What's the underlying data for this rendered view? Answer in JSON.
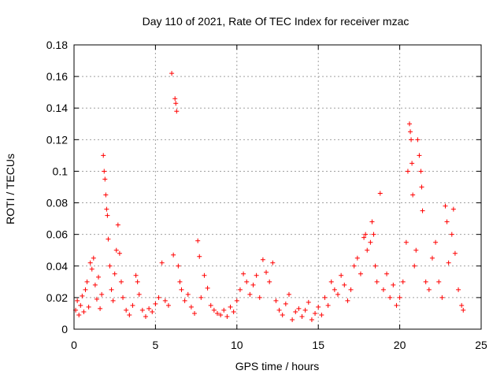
{
  "chart_data": {
    "type": "scatter",
    "title": "Day 110 of 2021, Rate Of TEC Index for receiver mzac",
    "xlabel": "GPS time / hours",
    "ylabel": "ROTI / TECUs",
    "xlim": [
      0,
      25
    ],
    "ylim": [
      0,
      0.18
    ],
    "xticks": [
      0,
      5,
      10,
      15,
      20,
      25
    ],
    "yticks": [
      0,
      0.02,
      0.04,
      0.06,
      0.08,
      0.1,
      0.12,
      0.14,
      0.16,
      0.18
    ],
    "xtick_labels": [
      "0",
      "5",
      "10",
      "15",
      "20",
      "25"
    ],
    "ytick_labels": [
      "0",
      "0.02",
      "0.04",
      "0.06",
      "0.08",
      "0.1",
      "0.12",
      "0.14",
      "0.16",
      "0.18"
    ],
    "grid": true,
    "marker": "+",
    "color": "#ff0000",
    "series": [
      {
        "name": "ROTI",
        "points": [
          [
            0.1,
            0.012
          ],
          [
            0.2,
            0.018
          ],
          [
            0.3,
            0.009
          ],
          [
            0.4,
            0.015
          ],
          [
            0.5,
            0.021
          ],
          [
            0.6,
            0.011
          ],
          [
            0.7,
            0.025
          ],
          [
            0.8,
            0.03
          ],
          [
            0.9,
            0.014
          ],
          [
            1.0,
            0.042
          ],
          [
            1.1,
            0.038
          ],
          [
            1.2,
            0.045
          ],
          [
            1.3,
            0.028
          ],
          [
            1.4,
            0.019
          ],
          [
            1.5,
            0.033
          ],
          [
            1.6,
            0.013
          ],
          [
            1.7,
            0.022
          ],
          [
            1.8,
            0.11
          ],
          [
            1.85,
            0.1
          ],
          [
            1.9,
            0.095
          ],
          [
            1.95,
            0.085
          ],
          [
            2.0,
            0.076
          ],
          [
            2.05,
            0.072
          ],
          [
            2.1,
            0.057
          ],
          [
            2.2,
            0.04
          ],
          [
            2.3,
            0.025
          ],
          [
            2.4,
            0.018
          ],
          [
            2.5,
            0.035
          ],
          [
            2.6,
            0.05
          ],
          [
            2.7,
            0.066
          ],
          [
            2.8,
            0.048
          ],
          [
            2.9,
            0.03
          ],
          [
            3.0,
            0.02
          ],
          [
            3.2,
            0.012
          ],
          [
            3.4,
            0.009
          ],
          [
            3.6,
            0.015
          ],
          [
            3.8,
            0.034
          ],
          [
            3.9,
            0.03
          ],
          [
            4.0,
            0.022
          ],
          [
            4.2,
            0.012
          ],
          [
            4.4,
            0.008
          ],
          [
            4.6,
            0.013
          ],
          [
            4.8,
            0.011
          ],
          [
            5.0,
            0.016
          ],
          [
            5.2,
            0.02
          ],
          [
            5.4,
            0.042
          ],
          [
            5.6,
            0.018
          ],
          [
            5.8,
            0.015
          ],
          [
            6.0,
            0.162
          ],
          [
            6.1,
            0.047
          ],
          [
            6.2,
            0.146
          ],
          [
            6.25,
            0.143
          ],
          [
            6.3,
            0.138
          ],
          [
            6.4,
            0.04
          ],
          [
            6.5,
            0.03
          ],
          [
            6.6,
            0.025
          ],
          [
            6.8,
            0.018
          ],
          [
            7.0,
            0.022
          ],
          [
            7.2,
            0.014
          ],
          [
            7.4,
            0.01
          ],
          [
            7.6,
            0.056
          ],
          [
            7.7,
            0.046
          ],
          [
            7.8,
            0.02
          ],
          [
            8.0,
            0.034
          ],
          [
            8.2,
            0.026
          ],
          [
            8.4,
            0.015
          ],
          [
            8.6,
            0.012
          ],
          [
            8.8,
            0.01
          ],
          [
            9.0,
            0.009
          ],
          [
            9.2,
            0.012
          ],
          [
            9.4,
            0.008
          ],
          [
            9.6,
            0.014
          ],
          [
            9.8,
            0.011
          ],
          [
            10.0,
            0.018
          ],
          [
            10.2,
            0.025
          ],
          [
            10.4,
            0.035
          ],
          [
            10.6,
            0.03
          ],
          [
            10.8,
            0.022
          ],
          [
            11.0,
            0.028
          ],
          [
            11.2,
            0.034
          ],
          [
            11.4,
            0.02
          ],
          [
            11.6,
            0.044
          ],
          [
            11.8,
            0.036
          ],
          [
            12.0,
            0.03
          ],
          [
            12.2,
            0.042
          ],
          [
            12.4,
            0.018
          ],
          [
            12.6,
            0.012
          ],
          [
            12.8,
            0.009
          ],
          [
            13.0,
            0.016
          ],
          [
            13.2,
            0.022
          ],
          [
            13.4,
            0.006
          ],
          [
            13.6,
            0.011
          ],
          [
            13.8,
            0.013
          ],
          [
            14.0,
            0.008
          ],
          [
            14.2,
            0.012
          ],
          [
            14.4,
            0.017
          ],
          [
            14.6,
            0.006
          ],
          [
            14.8,
            0.01
          ],
          [
            15.0,
            0.014
          ],
          [
            15.2,
            0.009
          ],
          [
            15.4,
            0.02
          ],
          [
            15.6,
            0.015
          ],
          [
            15.8,
            0.03
          ],
          [
            16.0,
            0.025
          ],
          [
            16.2,
            0.022
          ],
          [
            16.4,
            0.034
          ],
          [
            16.6,
            0.028
          ],
          [
            16.8,
            0.018
          ],
          [
            17.0,
            0.025
          ],
          [
            17.2,
            0.04
          ],
          [
            17.4,
            0.045
          ],
          [
            17.6,
            0.035
          ],
          [
            17.8,
            0.058
          ],
          [
            17.9,
            0.06
          ],
          [
            18.0,
            0.05
          ],
          [
            18.2,
            0.055
          ],
          [
            18.3,
            0.068
          ],
          [
            18.4,
            0.06
          ],
          [
            18.5,
            0.04
          ],
          [
            18.6,
            0.03
          ],
          [
            18.8,
            0.086
          ],
          [
            19.0,
            0.025
          ],
          [
            19.2,
            0.035
          ],
          [
            19.4,
            0.02
          ],
          [
            19.6,
            0.028
          ],
          [
            19.8,
            0.015
          ],
          [
            20.0,
            0.02
          ],
          [
            20.2,
            0.03
          ],
          [
            20.4,
            0.055
          ],
          [
            20.5,
            0.1
          ],
          [
            20.6,
            0.13
          ],
          [
            20.65,
            0.125
          ],
          [
            20.7,
            0.12
          ],
          [
            20.75,
            0.105
          ],
          [
            20.8,
            0.085
          ],
          [
            20.9,
            0.04
          ],
          [
            21.0,
            0.05
          ],
          [
            21.1,
            0.12
          ],
          [
            21.2,
            0.11
          ],
          [
            21.3,
            0.1
          ],
          [
            21.35,
            0.09
          ],
          [
            21.4,
            0.075
          ],
          [
            21.6,
            0.03
          ],
          [
            21.8,
            0.025
          ],
          [
            22.0,
            0.045
          ],
          [
            22.2,
            0.055
          ],
          [
            22.4,
            0.03
          ],
          [
            22.6,
            0.02
          ],
          [
            22.8,
            0.078
          ],
          [
            22.9,
            0.068
          ],
          [
            23.0,
            0.042
          ],
          [
            23.2,
            0.06
          ],
          [
            23.3,
            0.076
          ],
          [
            23.4,
            0.048
          ],
          [
            23.6,
            0.025
          ],
          [
            23.8,
            0.015
          ],
          [
            23.9,
            0.012
          ]
        ]
      }
    ]
  }
}
